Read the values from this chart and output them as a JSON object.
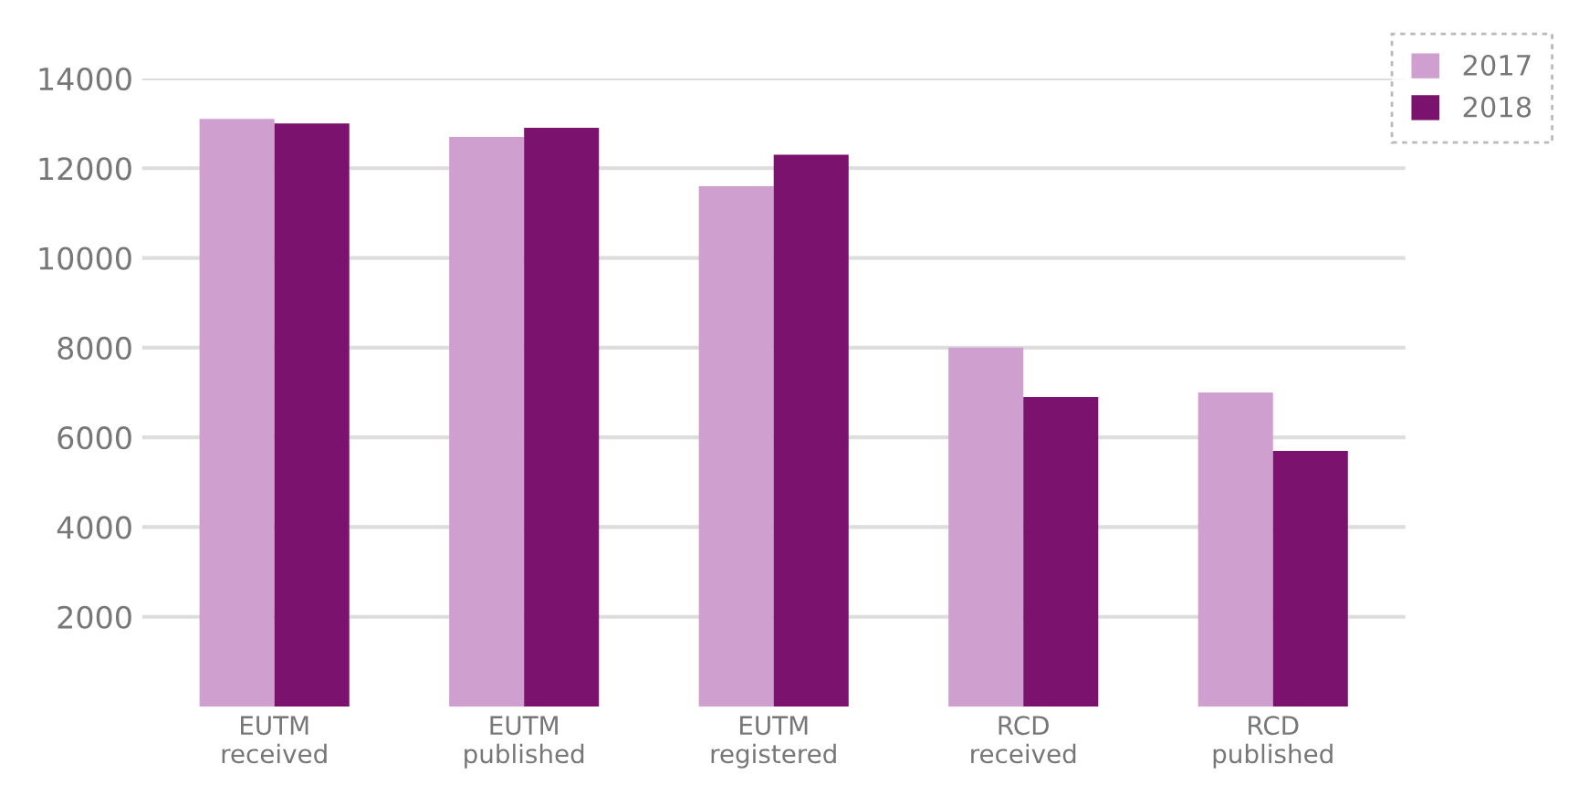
{
  "chart_data": {
    "type": "bar",
    "categories": [
      "EUTM\nreceived",
      "EUTM\npublished",
      "EUTM\nregistered",
      "RCD\nreceived",
      "RCD\npublished"
    ],
    "series": [
      {
        "name": "2017",
        "color": "#cfa0cf",
        "values": [
          13100,
          12700,
          11600,
          8000,
          7000
        ]
      },
      {
        "name": "2018",
        "color": "#7a126e",
        "values": [
          13000,
          12900,
          12300,
          6900,
          5700
        ]
      }
    ],
    "ylim": [
      0,
      14000
    ],
    "yticks": [
      2000,
      4000,
      6000,
      8000,
      10000,
      12000,
      14000
    ],
    "grid": "y",
    "legend": "top right"
  }
}
